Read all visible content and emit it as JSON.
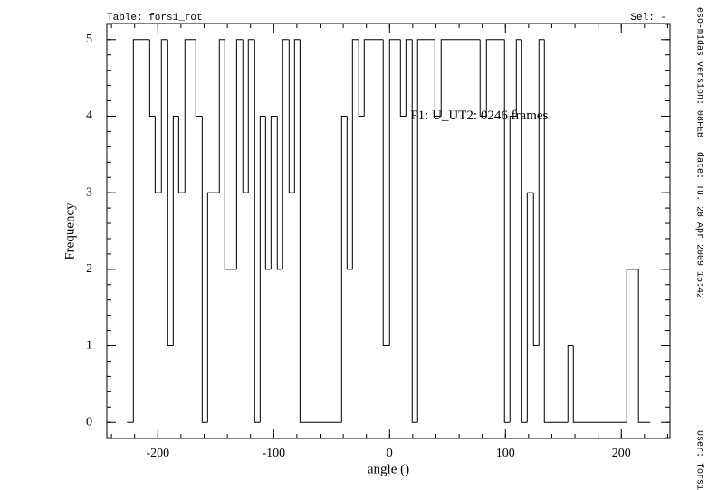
{
  "chart_data": {
    "type": "histogram",
    "table_label": "Table: fors1_rot",
    "selection": "Sel: -",
    "annotation": {
      "text": "F1: U_UT2: 0246 frames",
      "x": 18,
      "y": 4
    },
    "xlabel": "angle ()",
    "ylabel": "Frequency",
    "side_texts": [
      "eso-midas version: 08FEB",
      "date: Tu. 28 Apr 2009 15:42",
      "User: fors1"
    ],
    "color": "#000000",
    "bins": [
      -226.6,
      -221.1,
      -207.0,
      -202.3,
      -196.9,
      -191.4,
      -186.7,
      -182.0,
      -176.6,
      -167.2,
      -161.7,
      -157.0,
      -146.9,
      -142.2,
      -132.0,
      -126.6,
      -121.9,
      -116.4,
      -111.7,
      -107.0,
      -102.3,
      -96.9,
      -92.2,
      -86.7,
      -82.0,
      -77.3,
      -41.4,
      -36.7,
      -32.0,
      -26.6,
      -21.9,
      -5.5,
      0,
      9.4,
      14.1,
      19.5,
      24.2,
      39.1,
      44.5,
      78.1,
      83.6,
      99.2,
      103.9,
      109.4,
      114.1,
      118.8,
      124.2,
      128.9,
      133.6,
      153.9,
      158.6,
      204.7,
      214.8,
      225
    ],
    "values": [
      0,
      5,
      4,
      3,
      5,
      1,
      4,
      3,
      5,
      4,
      0,
      3,
      5,
      2,
      5,
      3,
      5,
      0,
      4,
      2,
      4,
      2,
      5,
      3,
      5,
      0,
      4,
      2,
      5,
      4,
      5,
      1,
      5,
      4,
      5,
      0,
      5,
      4,
      5,
      4,
      5,
      0,
      4,
      5,
      0,
      3,
      1,
      5,
      0,
      1,
      0,
      2,
      0
    ],
    "xlim": [
      -244,
      242
    ],
    "ylim": [
      -0.21,
      5.21
    ],
    "xticks": [
      -200,
      -100,
      0,
      100,
      200
    ],
    "yticks": [
      0,
      1,
      2,
      3,
      4,
      5
    ]
  }
}
